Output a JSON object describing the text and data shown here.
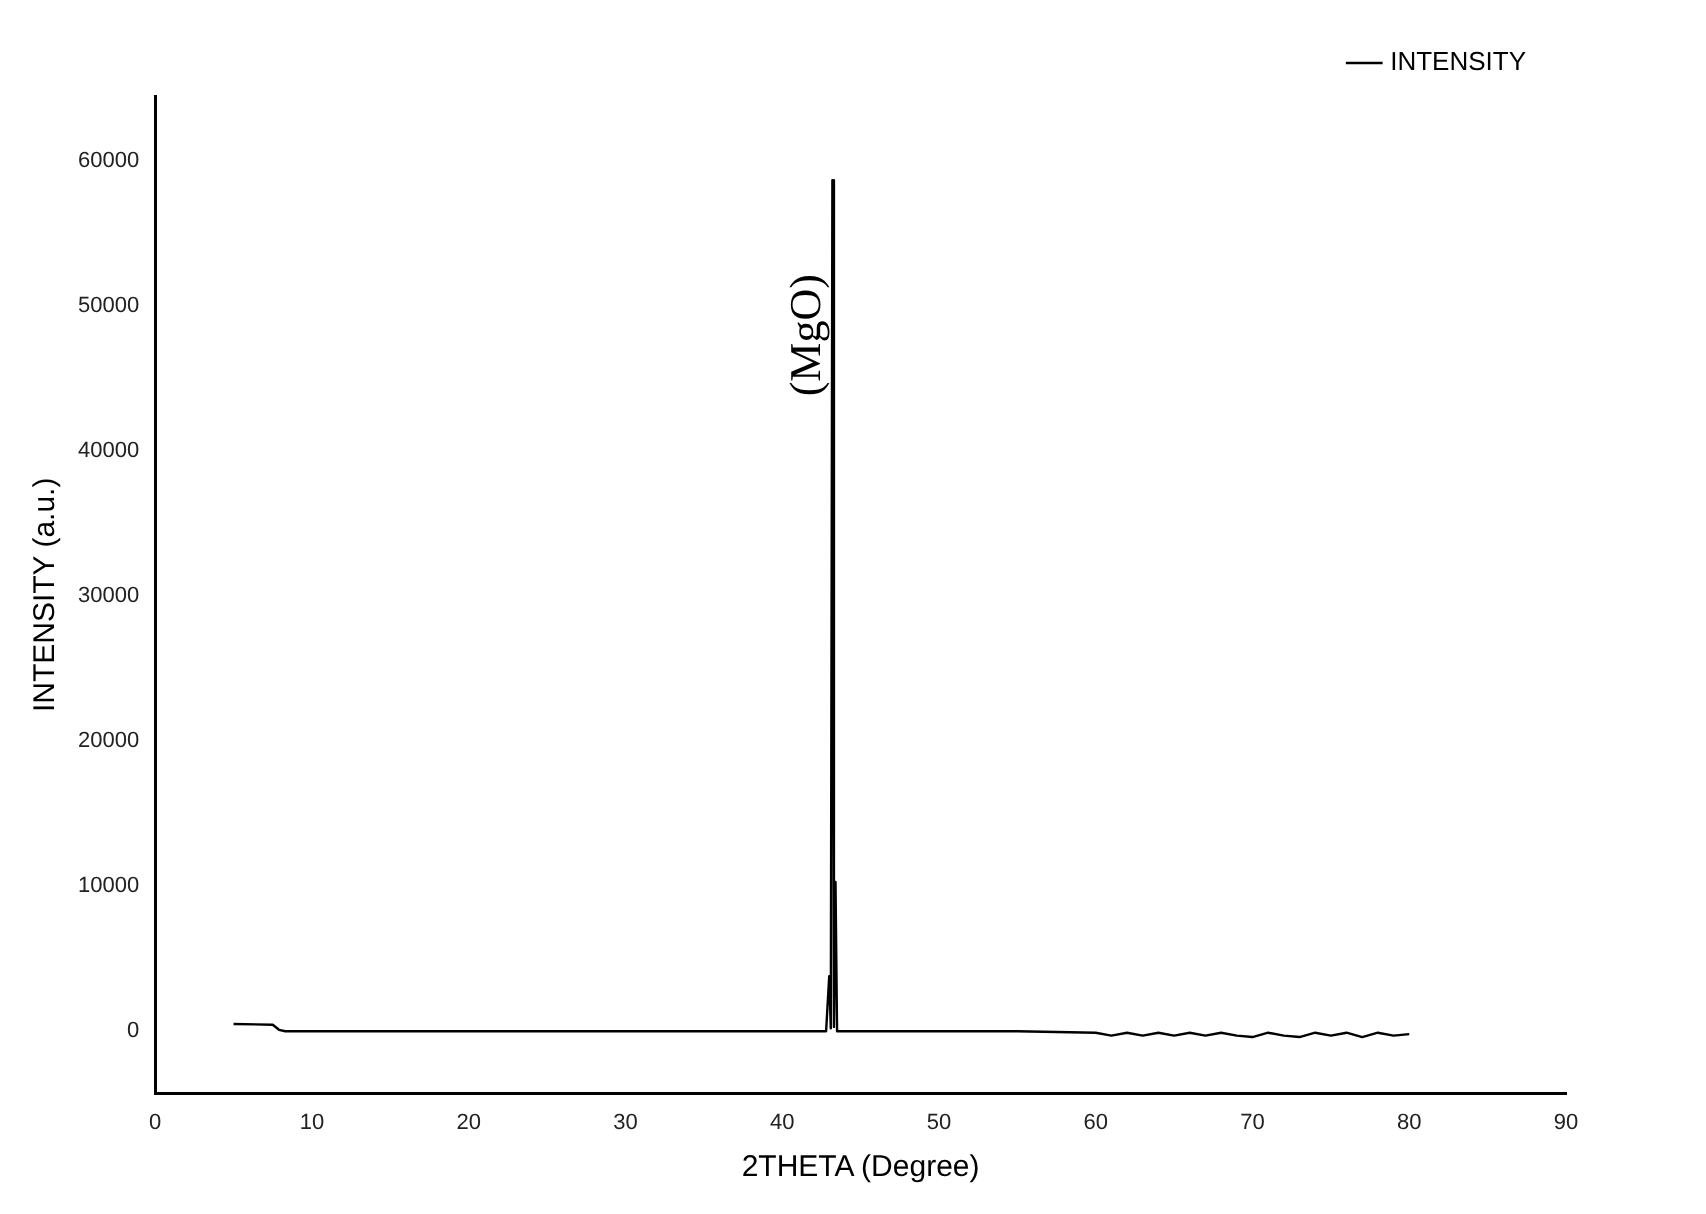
{
  "chart_data": {
    "type": "line",
    "xlabel": "2THETA (Degree)",
    "ylabel": "INTENSITY (a.u.)",
    "x": [
      5,
      7.5,
      7.9,
      8.3,
      10,
      20,
      30,
      40,
      42.8,
      43.0,
      43.1,
      43.2,
      43.3,
      43.4,
      43.5,
      43.7,
      50,
      55,
      60,
      61,
      62,
      63,
      64,
      65,
      66,
      67,
      68,
      69,
      70,
      71,
      72,
      73,
      74,
      75,
      76,
      77,
      78,
      79,
      80
    ],
    "series": [
      {
        "name": "INTENSITY",
        "color": "#000000",
        "values": [
          500,
          450,
          100,
          0,
          0,
          0,
          0,
          0,
          0,
          3800,
          200,
          58700,
          300,
          10300,
          0,
          0,
          0,
          0,
          -100,
          -300,
          -100,
          -300,
          -100,
          -300,
          -100,
          -300,
          -100,
          -300,
          -400,
          -100,
          -300,
          -400,
          -100,
          -300,
          -100,
          -400,
          -100,
          -300,
          -200
        ]
      }
    ],
    "annotations": [
      {
        "text": "(MgO)",
        "x": 43.2,
        "y": 48000
      }
    ],
    "xlim": [
      0,
      90
    ],
    "xticks": [
      0,
      10,
      20,
      30,
      40,
      50,
      60,
      70,
      80,
      90
    ],
    "ylim": [
      -4300,
      64500
    ],
    "yticks": [
      0,
      10000,
      20000,
      30000,
      40000,
      50000,
      60000
    ],
    "grid": false,
    "legend": "top right",
    "marker": "none",
    "line_style": "solid"
  }
}
